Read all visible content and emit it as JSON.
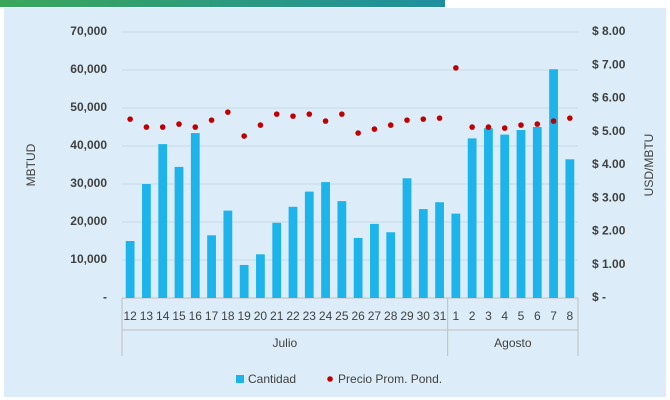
{
  "chart_data": {
    "type": "bar-scatter",
    "y_label": "MBTUD",
    "y2_label": "USD/MBTU",
    "groups": [
      {
        "name": "Julio",
        "categories": [
          "12",
          "13",
          "14",
          "15",
          "16",
          "17",
          "18",
          "19",
          "20",
          "21",
          "22",
          "23",
          "24",
          "25",
          "26",
          "27",
          "28",
          "29",
          "30",
          "31"
        ]
      },
      {
        "name": "Agosto",
        "categories": [
          "1",
          "2",
          "3",
          "4",
          "5",
          "6",
          "7",
          "8"
        ]
      }
    ],
    "series": [
      {
        "name": "Cantidad",
        "type": "bar",
        "color": "#1cb4ea",
        "values": [
          15000,
          30000,
          40500,
          34500,
          43400,
          16500,
          23000,
          8700,
          11500,
          19800,
          24000,
          28000,
          30500,
          25500,
          15800,
          19500,
          17300,
          31500,
          23400,
          25200,
          22200,
          42000,
          44700,
          43000,
          44200,
          45000,
          60200,
          36500
        ]
      },
      {
        "name": "Precio Prom. Pond.",
        "type": "scatter",
        "axis": "y2",
        "color": "#c00000",
        "values": [
          5.38,
          5.14,
          5.14,
          5.23,
          5.14,
          5.35,
          5.59,
          4.87,
          5.2,
          5.53,
          5.47,
          5.53,
          5.32,
          5.53,
          4.96,
          5.08,
          5.2,
          5.35,
          5.38,
          5.41,
          6.92,
          5.14,
          5.14,
          5.11,
          5.2,
          5.23,
          5.32,
          5.41
        ]
      }
    ],
    "ylim": [
      0,
      70000
    ],
    "yticks": [
      {
        "value": 0,
        "label": "-"
      },
      {
        "value": 10000,
        "label": "10,000"
      },
      {
        "value": 20000,
        "label": "20,000"
      },
      {
        "value": 30000,
        "label": "30,000"
      },
      {
        "value": 40000,
        "label": "40,000"
      },
      {
        "value": 50000,
        "label": "50,000"
      },
      {
        "value": 60000,
        "label": "60,000"
      },
      {
        "value": 70000,
        "label": "70,000"
      }
    ],
    "y2lim": [
      0,
      8
    ],
    "y2ticks": [
      {
        "value": 0,
        "label": "$ -"
      },
      {
        "value": 1,
        "label": "$ 1.00"
      },
      {
        "value": 2,
        "label": "$ 2.00"
      },
      {
        "value": 3,
        "label": "$ 3.00"
      },
      {
        "value": 4,
        "label": "$ 4.00"
      },
      {
        "value": 5,
        "label": "$ 5.00"
      },
      {
        "value": 6,
        "label": "$ 6.00"
      },
      {
        "value": 7,
        "label": "$ 7.00"
      },
      {
        "value": 8,
        "label": "$ 8.00"
      }
    ],
    "grid": true,
    "legend": "bottom"
  }
}
